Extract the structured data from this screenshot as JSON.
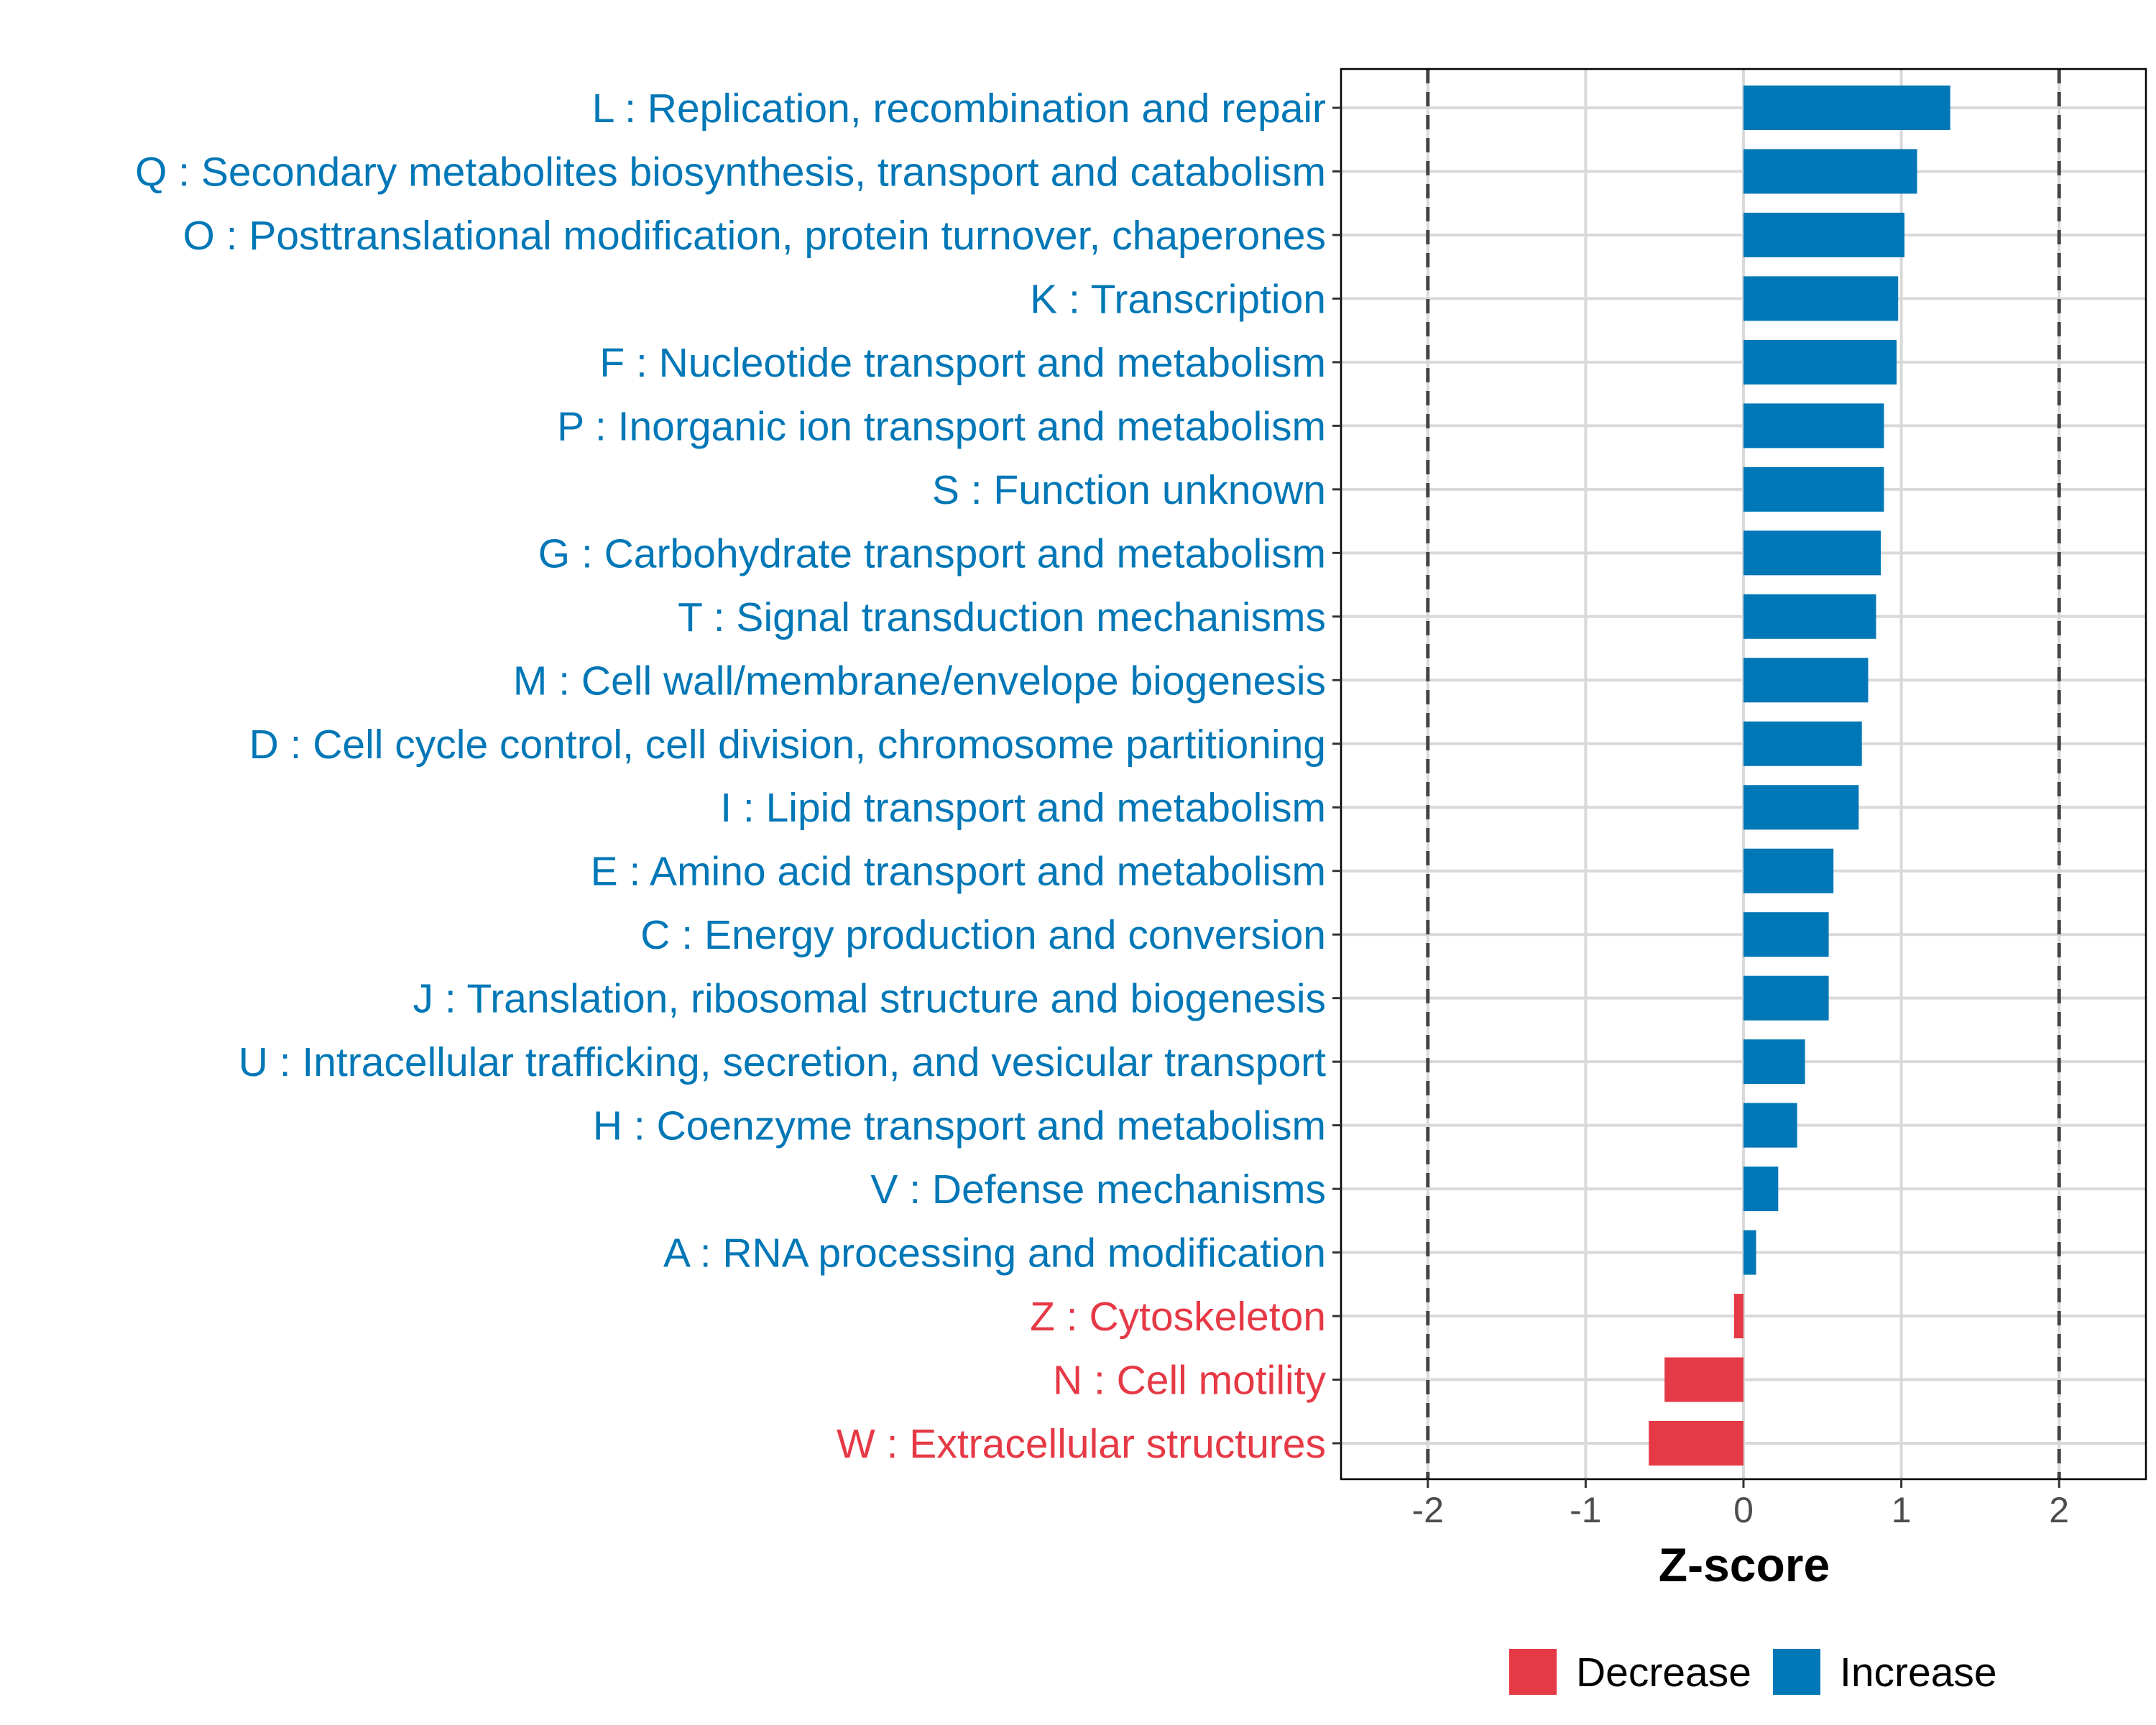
{
  "chart_data": {
    "type": "bar",
    "orientation": "horizontal",
    "title": "",
    "xlabel": "Z-score",
    "ylabel": "",
    "xlim": [
      -2.55,
      2.55
    ],
    "xticks": [
      -2,
      -1,
      0,
      1,
      2
    ],
    "xtick_labels": [
      "-2",
      "-1",
      "0",
      "1",
      "2"
    ],
    "reference_lines": [
      -2,
      2
    ],
    "grid": true,
    "legend_position": "bottom",
    "colors": {
      "Decrease": "#E63946",
      "Increase": "#0077B6"
    },
    "categories": [
      "L : Replication, recombination and repair",
      "Q : Secondary metabolites biosynthesis, transport and catabolism",
      "O : Posttranslational modification, protein turnover, chaperones",
      "K : Transcription",
      "F : Nucleotide transport and metabolism",
      "P : Inorganic ion transport and metabolism",
      "S : Function unknown",
      "G : Carbohydrate transport and metabolism",
      "T : Signal transduction mechanisms",
      "M : Cell wall/membrane/envelope biogenesis",
      "D : Cell cycle control, cell division, chromosome partitioning",
      "I : Lipid transport and metabolism",
      "E : Amino acid transport and metabolism",
      "C : Energy production and conversion",
      "J : Translation, ribosomal structure and biogenesis",
      "U : Intracellular trafficking, secretion, and vesicular transport",
      "H : Coenzyme transport and metabolism",
      "V : Defense mechanisms",
      "A : RNA processing and modification",
      "Z : Cytoskeleton",
      "N : Cell motility",
      "W : Extracellular structures"
    ],
    "values": [
      1.31,
      1.1,
      1.02,
      0.98,
      0.97,
      0.89,
      0.89,
      0.87,
      0.84,
      0.79,
      0.75,
      0.73,
      0.57,
      0.54,
      0.54,
      0.39,
      0.34,
      0.22,
      0.08,
      -0.06,
      -0.5,
      -0.6
    ],
    "legend": [
      {
        "label": "Decrease"
      },
      {
        "label": "Increase"
      }
    ]
  }
}
